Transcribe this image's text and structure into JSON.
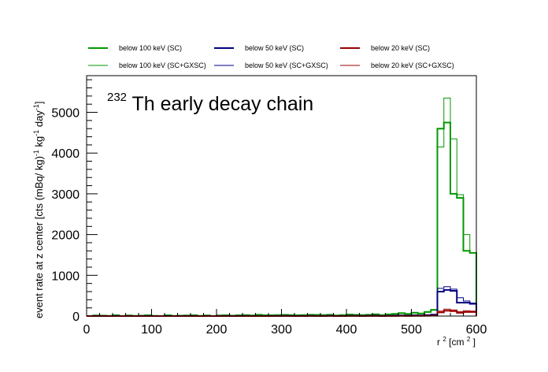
{
  "chart_data": {
    "type": "line",
    "title_sup": "232",
    "title_main": "Th early decay chain",
    "xlabel_base": "r",
    "xlabel_sup": "2",
    "xlabel_unit_open": " [cm",
    "xlabel_unit_sup": "2",
    "xlabel_unit_close": "]",
    "ylabel_parts": [
      {
        "t": "event rate at z center [cts (mBq/ kg)"
      },
      {
        "t": "-1",
        "sup": true
      },
      {
        "t": " kg"
      },
      {
        "t": "-1",
        "sup": true
      },
      {
        "t": " day"
      },
      {
        "t": "-1",
        "sup": true
      },
      {
        "t": "]"
      }
    ],
    "xlim": [
      0,
      600
    ],
    "ylim": [
      0,
      5900
    ],
    "xticks": [
      "0",
      "100",
      "200",
      "300",
      "400",
      "500",
      "600"
    ],
    "yticks": [
      "0",
      "1000",
      "2000",
      "3000",
      "4000",
      "5000"
    ],
    "bin_edges": [
      0,
      10,
      20,
      30,
      40,
      50,
      60,
      70,
      80,
      90,
      100,
      110,
      120,
      130,
      140,
      150,
      160,
      170,
      180,
      190,
      200,
      210,
      220,
      230,
      240,
      250,
      260,
      270,
      280,
      290,
      300,
      310,
      320,
      330,
      340,
      350,
      360,
      370,
      380,
      390,
      400,
      410,
      420,
      430,
      440,
      450,
      460,
      470,
      480,
      490,
      500,
      510,
      520,
      530,
      540,
      550,
      560,
      570,
      580,
      590,
      600
    ],
    "series": [
      {
        "name": "below 100 keV (SC+GXSC)",
        "color": "#009900",
        "width": 1,
        "values": [
          0,
          20,
          15,
          10,
          25,
          0,
          20,
          10,
          15,
          30,
          10,
          0,
          25,
          10,
          15,
          20,
          30,
          10,
          20,
          0,
          20,
          30,
          15,
          25,
          30,
          20,
          40,
          30,
          25,
          30,
          35,
          30,
          25,
          30,
          40,
          35,
          30,
          40,
          20,
          30,
          45,
          35,
          30,
          40,
          50,
          30,
          45,
          60,
          80,
          60,
          90,
          70,
          110,
          160,
          4150,
          5350,
          4350,
          2980,
          2000,
          1550
        ]
      },
      {
        "name": "below 100 keV (SC)",
        "color": "#009900",
        "width": 2,
        "values": [
          0,
          15,
          10,
          5,
          20,
          0,
          15,
          5,
          10,
          20,
          5,
          0,
          20,
          5,
          10,
          15,
          20,
          5,
          15,
          0,
          15,
          20,
          10,
          20,
          25,
          15,
          30,
          20,
          20,
          25,
          30,
          25,
          20,
          25,
          30,
          30,
          25,
          30,
          15,
          25,
          35,
          30,
          25,
          30,
          40,
          25,
          40,
          50,
          70,
          50,
          80,
          60,
          100,
          150,
          4600,
          4750,
          3000,
          2900,
          1600,
          1550
        ]
      },
      {
        "name": "below 50 keV (SC+GXSC)",
        "color": "#000080",
        "width": 1,
        "values": [
          0,
          5,
          3,
          0,
          5,
          0,
          3,
          0,
          5,
          5,
          0,
          0,
          5,
          0,
          3,
          5,
          5,
          0,
          3,
          0,
          3,
          5,
          3,
          5,
          5,
          3,
          5,
          5,
          5,
          5,
          10,
          5,
          5,
          5,
          10,
          5,
          5,
          10,
          5,
          5,
          10,
          10,
          5,
          10,
          15,
          5,
          10,
          15,
          20,
          15,
          25,
          20,
          30,
          40,
          680,
          720,
          660,
          450,
          370,
          320
        ]
      },
      {
        "name": "below 50 keV (SC)",
        "color": "#000080",
        "width": 2,
        "values": [
          0,
          3,
          2,
          0,
          3,
          0,
          2,
          0,
          3,
          3,
          0,
          0,
          3,
          0,
          2,
          3,
          3,
          0,
          2,
          0,
          2,
          3,
          2,
          3,
          3,
          2,
          3,
          3,
          3,
          3,
          8,
          3,
          3,
          3,
          8,
          3,
          3,
          8,
          3,
          3,
          8,
          8,
          3,
          8,
          12,
          3,
          8,
          12,
          15,
          12,
          20,
          15,
          25,
          35,
          600,
          640,
          620,
          330,
          330,
          300
        ]
      },
      {
        "name": "below 20 keV (SC+GXSC)",
        "color": "#990000",
        "width": 1,
        "values": [
          0,
          2,
          1,
          0,
          2,
          0,
          1,
          0,
          2,
          2,
          0,
          0,
          2,
          0,
          1,
          2,
          2,
          0,
          1,
          0,
          1,
          2,
          1,
          2,
          2,
          1,
          2,
          2,
          2,
          2,
          3,
          2,
          2,
          2,
          3,
          2,
          2,
          3,
          2,
          2,
          3,
          3,
          2,
          3,
          5,
          2,
          3,
          5,
          8,
          5,
          10,
          8,
          12,
          15,
          120,
          170,
          150,
          110,
          130,
          120
        ]
      },
      {
        "name": "below 20 keV (SC)",
        "color": "#990000",
        "width": 2,
        "values": [
          0,
          1,
          0,
          0,
          1,
          0,
          0,
          0,
          1,
          1,
          0,
          0,
          1,
          0,
          0,
          1,
          1,
          0,
          0,
          0,
          0,
          1,
          0,
          1,
          1,
          0,
          1,
          1,
          1,
          1,
          2,
          1,
          1,
          1,
          2,
          1,
          1,
          2,
          1,
          1,
          2,
          2,
          1,
          2,
          3,
          1,
          2,
          3,
          5,
          3,
          6,
          5,
          8,
          10,
          90,
          130,
          120,
          80,
          100,
          100
        ]
      }
    ],
    "legend": [
      {
        "label": "below 100 keV (SC)",
        "color": "#009900",
        "width": 2,
        "col": 0,
        "row": 0
      },
      {
        "label": "below 50 keV (SC)",
        "color": "#000080",
        "width": 2,
        "col": 1,
        "row": 0
      },
      {
        "label": "below 20 keV (SC)",
        "color": "#990000",
        "width": 2,
        "col": 2,
        "row": 0
      },
      {
        "label": "below 100 keV (SC+GXSC)",
        "color": "#009900",
        "width": 1,
        "col": 0,
        "row": 1
      },
      {
        "label": "below 50 keV (SC+GXSC)",
        "color": "#000080",
        "width": 1,
        "col": 1,
        "row": 1
      },
      {
        "label": "below 20 keV (SC+GXSC)",
        "color": "#990000",
        "width": 1,
        "col": 2,
        "row": 1
      }
    ],
    "legend_position": "top",
    "grid": false
  }
}
